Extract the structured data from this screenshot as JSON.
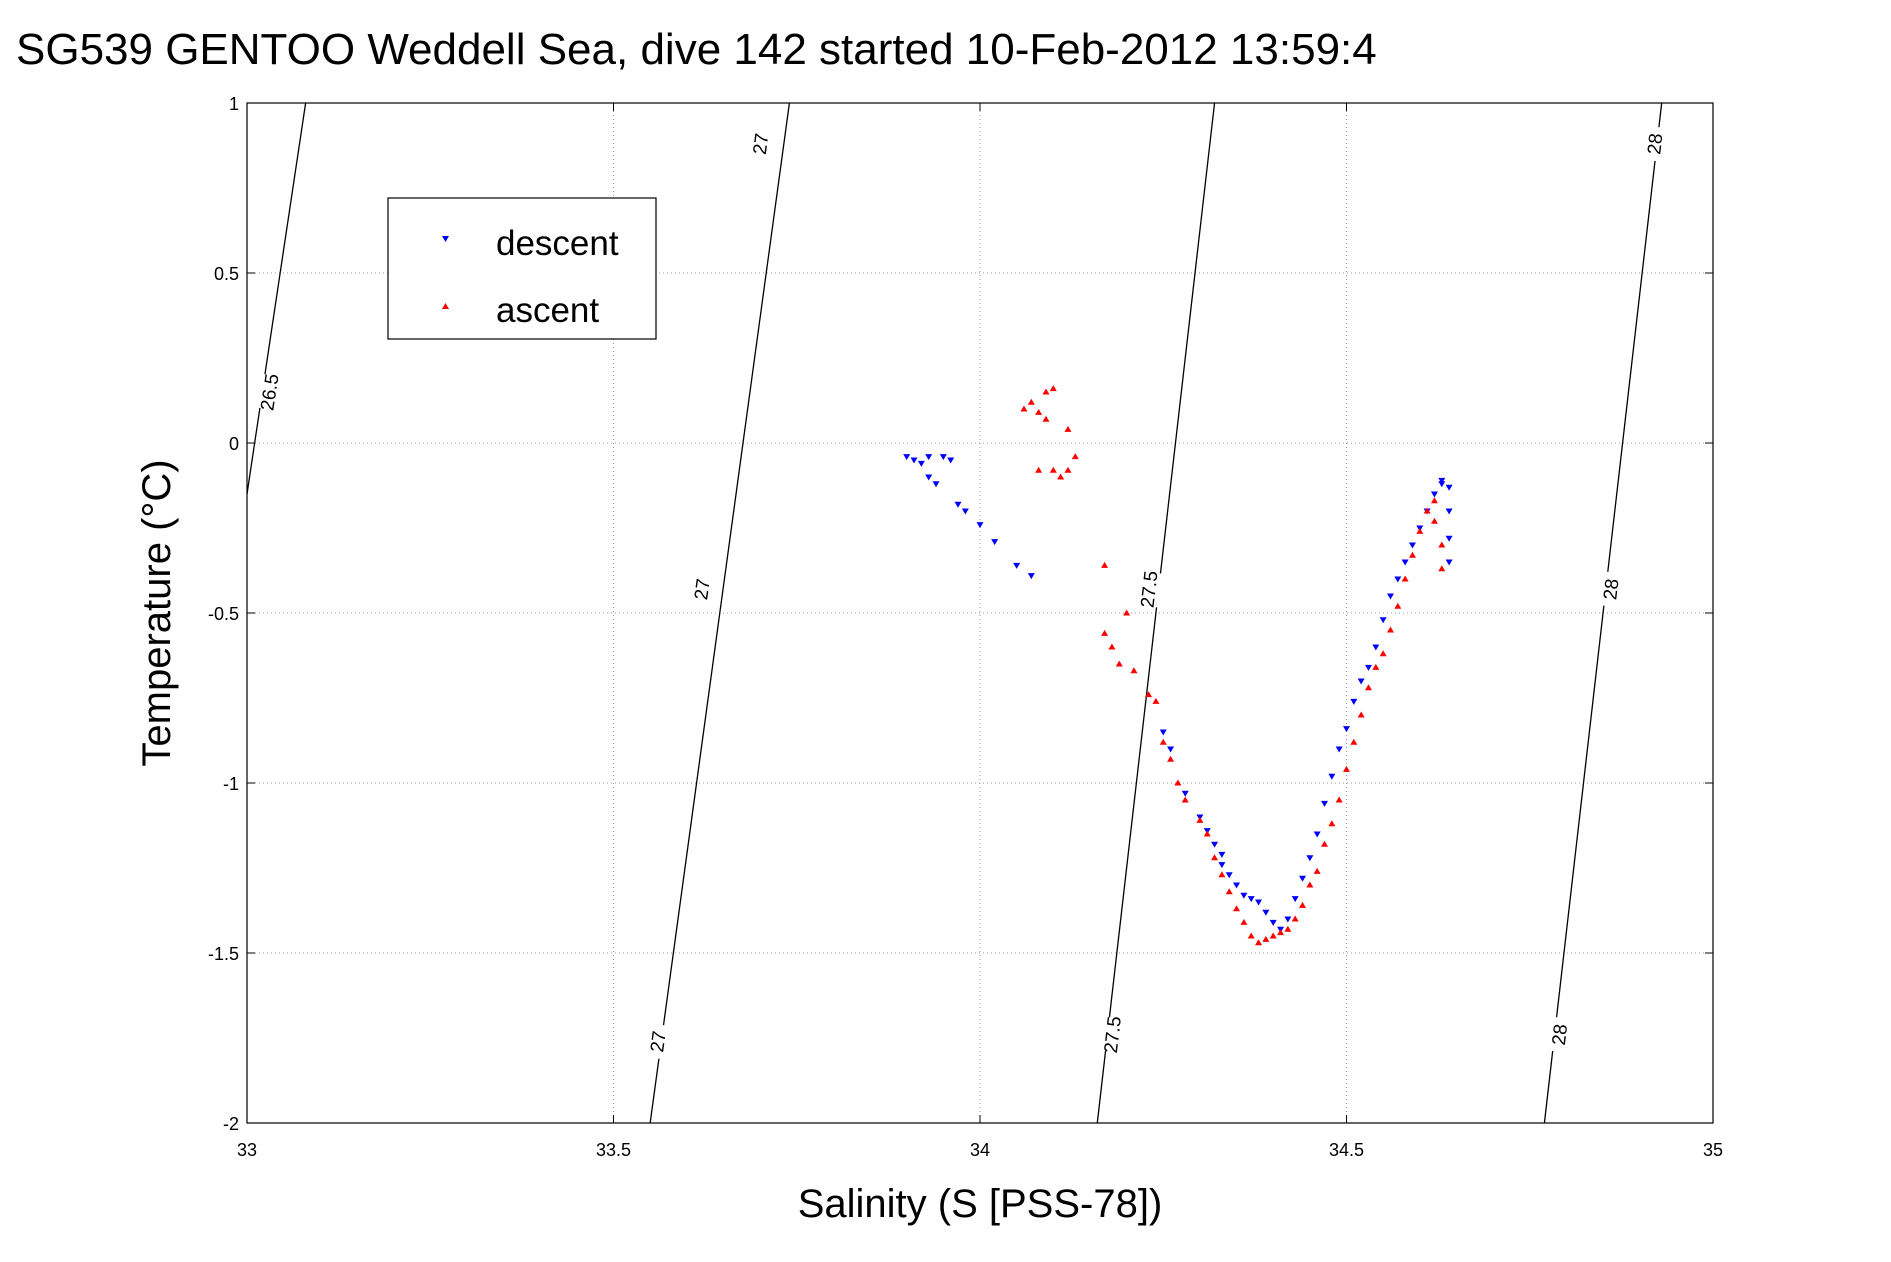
{
  "chart_data": {
    "type": "scatter",
    "title": "SG539 GENTOO Weddell Sea, dive 142 started 10-Feb-2012 13:59:4",
    "xlabel": "Salinity (S [PSS-78])",
    "ylabel": "Temperature (°C)",
    "xlim": [
      33,
      35
    ],
    "ylim": [
      -2,
      1
    ],
    "xticks": [
      33,
      33.5,
      34,
      34.5,
      35
    ],
    "yticks": [
      -2,
      -1.5,
      -1,
      -0.5,
      0,
      0.5,
      1
    ],
    "xtick_labels": [
      "33",
      "33.5",
      "34",
      "34.5",
      "35"
    ],
    "ytick_labels": [
      "-2",
      "-1.5",
      "-1",
      "-0.5",
      "0",
      "0.5",
      "1"
    ],
    "grid": true,
    "legend_position": "top-left",
    "isopycnals": [
      {
        "label": "26.5",
        "points": [
          [
            33.08,
            1
          ],
          [
            33.0,
            -0.15
          ]
        ],
        "label_at": [
          [
            33.03,
            0.15
          ]
        ]
      },
      {
        "label": "27",
        "points": [
          [
            33.74,
            1
          ],
          [
            33.55,
            -2
          ]
        ],
        "label_at": [
          [
            33.7,
            0.88
          ],
          [
            33.62,
            -0.43
          ],
          [
            33.56,
            -1.76
          ]
        ]
      },
      {
        "label": "27.5",
        "points": [
          [
            34.32,
            1
          ],
          [
            34.16,
            -2
          ]
        ],
        "label_at": [
          [
            34.23,
            -0.43
          ],
          [
            34.18,
            -1.74
          ]
        ]
      },
      {
        "label": "28",
        "points": [
          [
            34.93,
            1
          ],
          [
            34.77,
            -2
          ]
        ],
        "label_at": [
          [
            34.92,
            0.88
          ],
          [
            34.86,
            -0.43
          ],
          [
            34.79,
            -1.74
          ]
        ]
      }
    ],
    "series": [
      {
        "name": "descent",
        "color": "#0000ff",
        "marker": "triangle-down",
        "points": [
          [
            33.9,
            -0.04
          ],
          [
            33.91,
            -0.05
          ],
          [
            33.92,
            -0.06
          ],
          [
            33.93,
            -0.04
          ],
          [
            33.95,
            -0.04
          ],
          [
            33.96,
            -0.05
          ],
          [
            33.93,
            -0.1
          ],
          [
            33.94,
            -0.12
          ],
          [
            33.97,
            -0.18
          ],
          [
            33.98,
            -0.2
          ],
          [
            34.0,
            -0.24
          ],
          [
            34.02,
            -0.29
          ],
          [
            34.05,
            -0.36
          ],
          [
            34.07,
            -0.39
          ],
          [
            34.25,
            -0.85
          ],
          [
            34.26,
            -0.9
          ],
          [
            34.28,
            -1.03
          ],
          [
            34.3,
            -1.1
          ],
          [
            34.31,
            -1.14
          ],
          [
            34.32,
            -1.18
          ],
          [
            34.33,
            -1.21
          ],
          [
            34.33,
            -1.24
          ],
          [
            34.34,
            -1.27
          ],
          [
            34.35,
            -1.3
          ],
          [
            34.36,
            -1.33
          ],
          [
            34.37,
            -1.34
          ],
          [
            34.38,
            -1.35
          ],
          [
            34.39,
            -1.38
          ],
          [
            34.4,
            -1.41
          ],
          [
            34.41,
            -1.43
          ],
          [
            34.42,
            -1.4
          ],
          [
            34.43,
            -1.34
          ],
          [
            34.44,
            -1.28
          ],
          [
            34.45,
            -1.22
          ],
          [
            34.46,
            -1.15
          ],
          [
            34.47,
            -1.06
          ],
          [
            34.48,
            -0.98
          ],
          [
            34.49,
            -0.9
          ],
          [
            34.5,
            -0.84
          ],
          [
            34.51,
            -0.76
          ],
          [
            34.52,
            -0.7
          ],
          [
            34.53,
            -0.66
          ],
          [
            34.54,
            -0.6
          ],
          [
            34.55,
            -0.52
          ],
          [
            34.56,
            -0.45
          ],
          [
            34.57,
            -0.4
          ],
          [
            34.58,
            -0.35
          ],
          [
            34.59,
            -0.3
          ],
          [
            34.6,
            -0.25
          ],
          [
            34.61,
            -0.2
          ],
          [
            34.62,
            -0.15
          ],
          [
            34.63,
            -0.12
          ],
          [
            34.63,
            -0.11
          ],
          [
            34.64,
            -0.13
          ],
          [
            34.64,
            -0.2
          ],
          [
            34.64,
            -0.28
          ],
          [
            34.64,
            -0.35
          ]
        ]
      },
      {
        "name": "ascent",
        "color": "#ff0000",
        "marker": "triangle-up",
        "points": [
          [
            34.06,
            0.1
          ],
          [
            34.07,
            0.12
          ],
          [
            34.08,
            0.09
          ],
          [
            34.09,
            0.15
          ],
          [
            34.1,
            0.16
          ],
          [
            34.09,
            0.07
          ],
          [
            34.12,
            0.04
          ],
          [
            34.13,
            -0.04
          ],
          [
            34.12,
            -0.08
          ],
          [
            34.11,
            -0.1
          ],
          [
            34.1,
            -0.08
          ],
          [
            34.08,
            -0.08
          ],
          [
            34.17,
            -0.36
          ],
          [
            34.2,
            -0.5
          ],
          [
            34.17,
            -0.56
          ],
          [
            34.18,
            -0.6
          ],
          [
            34.19,
            -0.65
          ],
          [
            34.21,
            -0.67
          ],
          [
            34.23,
            -0.74
          ],
          [
            34.24,
            -0.76
          ],
          [
            34.25,
            -0.88
          ],
          [
            34.26,
            -0.93
          ],
          [
            34.27,
            -1.0
          ],
          [
            34.28,
            -1.05
          ],
          [
            34.3,
            -1.11
          ],
          [
            34.31,
            -1.15
          ],
          [
            34.32,
            -1.22
          ],
          [
            34.33,
            -1.27
          ],
          [
            34.34,
            -1.32
          ],
          [
            34.35,
            -1.37
          ],
          [
            34.36,
            -1.41
          ],
          [
            34.37,
            -1.45
          ],
          [
            34.38,
            -1.47
          ],
          [
            34.39,
            -1.46
          ],
          [
            34.4,
            -1.45
          ],
          [
            34.41,
            -1.44
          ],
          [
            34.42,
            -1.43
          ],
          [
            34.43,
            -1.4
          ],
          [
            34.44,
            -1.36
          ],
          [
            34.45,
            -1.3
          ],
          [
            34.46,
            -1.26
          ],
          [
            34.47,
            -1.18
          ],
          [
            34.48,
            -1.12
          ],
          [
            34.49,
            -1.05
          ],
          [
            34.5,
            -0.96
          ],
          [
            34.51,
            -0.88
          ],
          [
            34.52,
            -0.8
          ],
          [
            34.53,
            -0.72
          ],
          [
            34.54,
            -0.66
          ],
          [
            34.55,
            -0.62
          ],
          [
            34.56,
            -0.55
          ],
          [
            34.57,
            -0.48
          ],
          [
            34.58,
            -0.4
          ],
          [
            34.59,
            -0.33
          ],
          [
            34.6,
            -0.26
          ],
          [
            34.61,
            -0.2
          ],
          [
            34.62,
            -0.17
          ],
          [
            34.62,
            -0.23
          ],
          [
            34.63,
            -0.3
          ],
          [
            34.63,
            -0.37
          ]
        ]
      }
    ]
  }
}
